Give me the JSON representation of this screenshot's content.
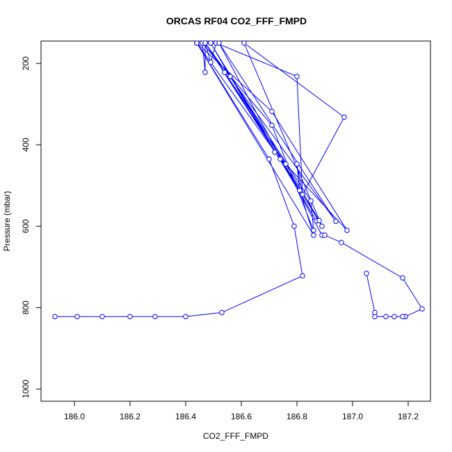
{
  "chart_data": {
    "type": "line",
    "title": "ORCAS RF04 CO2_FFF_FMPD",
    "xlabel": "CO2_FFF_FMPD",
    "ylabel": "Pressure (mbar)",
    "xlim": [
      185.88,
      187.28
    ],
    "ylim": [
      1030,
      145
    ],
    "y_reversed": true,
    "x_ticks": [
      "186.0",
      "186.2",
      "186.4",
      "186.6",
      "186.8",
      "187.0",
      "187.2"
    ],
    "x_tick_values": [
      186.0,
      186.2,
      186.4,
      186.6,
      186.8,
      187.0,
      187.2
    ],
    "y_ticks": [
      "200",
      "400",
      "600",
      "800",
      "1000"
    ],
    "y_tick_values": [
      200,
      400,
      600,
      800,
      1000
    ],
    "series": [
      {
        "color": "#0000ff",
        "points": [
          [
            185.93,
            822
          ],
          [
            186.01,
            822
          ],
          [
            186.1,
            822
          ],
          [
            186.2,
            822
          ],
          [
            186.29,
            822
          ],
          [
            186.4,
            822
          ],
          [
            186.53,
            812
          ],
          [
            186.82,
            722
          ],
          [
            186.79,
            600
          ],
          [
            186.7,
            435
          ],
          [
            186.44,
            150
          ],
          [
            186.71,
            318
          ],
          [
            186.98,
            610
          ],
          [
            186.72,
            418
          ],
          [
            186.49,
            150
          ],
          [
            186.89,
            600
          ],
          [
            186.61,
            150
          ],
          [
            186.97,
            332
          ],
          [
            186.82,
            522
          ],
          [
            186.8,
            232
          ],
          [
            186.51,
            150
          ],
          [
            186.49,
            197
          ],
          [
            186.47,
            150
          ],
          [
            186.47,
            222
          ],
          [
            186.46,
            150
          ],
          [
            186.71,
            352
          ],
          [
            186.86,
            610
          ],
          [
            186.85,
            538
          ],
          [
            186.56,
            232
          ],
          [
            186.49,
            150
          ],
          [
            186.87,
            587
          ],
          [
            186.74,
            435
          ],
          [
            186.44,
            150
          ],
          [
            186.86,
            622
          ],
          [
            186.81,
            512
          ],
          [
            186.8,
            447
          ],
          [
            186.82,
            522
          ],
          [
            186.54,
            222
          ],
          [
            186.47,
            150
          ],
          [
            186.88,
            586
          ],
          [
            186.76,
            447
          ],
          [
            186.47,
            150
          ],
          [
            186.94,
            588
          ],
          [
            186.52,
            150
          ],
          [
            186.89,
            622
          ],
          [
            186.9,
            622
          ],
          [
            186.96,
            640
          ],
          [
            187.18,
            727
          ],
          [
            187.25,
            803
          ],
          [
            187.19,
            822
          ],
          [
            187.19,
            822
          ],
          [
            187.18,
            822
          ],
          [
            187.15,
            822
          ],
          [
            187.12,
            822
          ],
          [
            187.08,
            822
          ],
          [
            187.08,
            812
          ],
          [
            187.05,
            716
          ]
        ]
      }
    ]
  }
}
